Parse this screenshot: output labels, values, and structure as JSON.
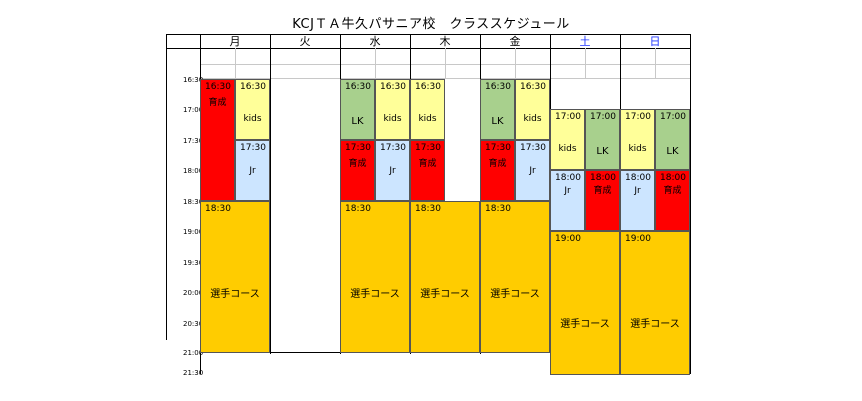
{
  "title": "KCJＴＡ牛久パサニア校　クラススケジュール",
  "days": [
    "月",
    "火",
    "水",
    "木",
    "金",
    "土",
    "日"
  ],
  "times": [
    "16:30",
    "17:00",
    "17:30",
    "18:00",
    "18:30",
    "19:00",
    "19:30",
    "20:00",
    "20:30",
    "21:00",
    "21:30"
  ],
  "colors": {
    "red": "#ff0000",
    "yellow": "#ffff99",
    "blue": "#cce5ff",
    "green": "#a8d08d",
    "orange": "#ffcc00"
  },
  "blocks": {
    "mon_red": {
      "time": "16:30",
      "label": "育成"
    },
    "mon_kids": {
      "time": "16:30",
      "label": "kids"
    },
    "mon_jr": {
      "time": "17:30",
      "label": "Jr"
    },
    "mon_sel": {
      "time": "18:30",
      "label": "選手コース"
    },
    "wed_lk": {
      "time": "16:30",
      "label": "LK"
    },
    "wed_kids": {
      "time": "16:30",
      "label": "kids"
    },
    "wed_red": {
      "time": "17:30",
      "label": "育成"
    },
    "wed_jr": {
      "time": "17:30",
      "label": "Jr"
    },
    "wed_sel": {
      "time": "18:30",
      "label": "選手コース"
    },
    "thu_kids": {
      "time": "16:30",
      "label": "kids"
    },
    "thu_red": {
      "time": "17:30",
      "label": "育成"
    },
    "thu_sel": {
      "time": "18:30",
      "label": "選手コース"
    },
    "fri_lk": {
      "time": "16:30",
      "label": "LK"
    },
    "fri_kids": {
      "time": "16:30",
      "label": "kids"
    },
    "fri_red": {
      "time": "17:30",
      "label": "育成"
    },
    "fri_jr": {
      "time": "17:30",
      "label": "Jr"
    },
    "fri_sel": {
      "time": "18:30",
      "label": "選手コース"
    },
    "sat_kids": {
      "time": "17:00",
      "label": "kids"
    },
    "sat_lk": {
      "time": "17:00",
      "label": "LK"
    },
    "sat_jr": {
      "time": "18:00",
      "label": "Jr"
    },
    "sat_red": {
      "time": "18:00",
      "label": "育成"
    },
    "sat_sel": {
      "time": "19:00",
      "label": "選手コース"
    },
    "sun_kids": {
      "time": "17:00",
      "label": "kids"
    },
    "sun_lk": {
      "time": "17:00",
      "label": "LK"
    },
    "sun_jr": {
      "time": "18:00",
      "label": "Jr"
    },
    "sun_red": {
      "time": "18:00",
      "label": "育成"
    },
    "sun_sel": {
      "time": "19:00",
      "label": "選手コース"
    }
  }
}
